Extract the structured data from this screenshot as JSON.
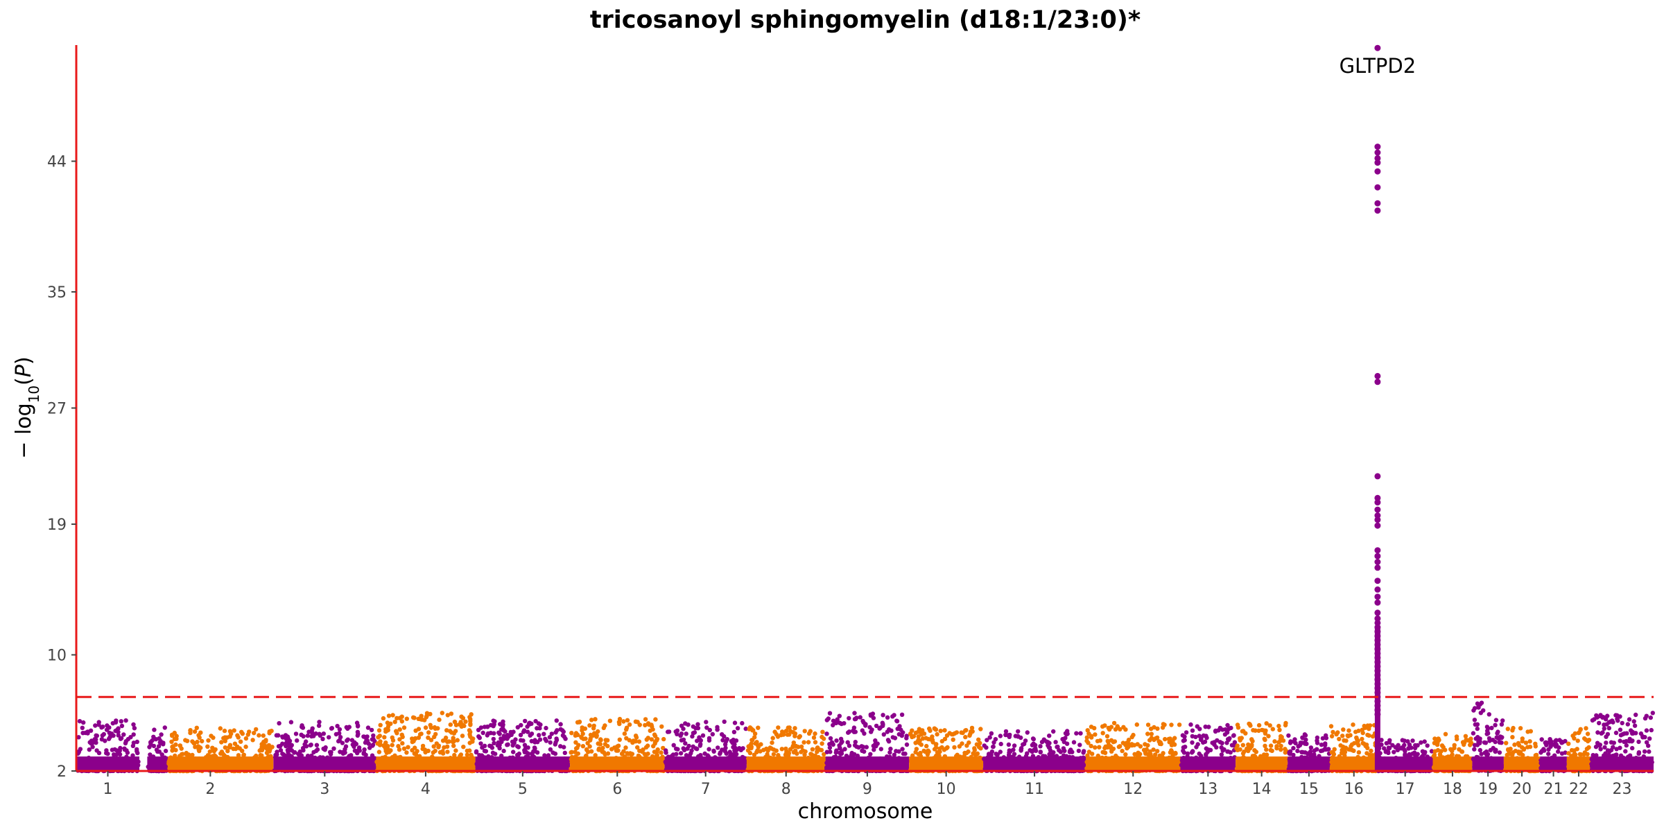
{
  "chart_data": {
    "type": "scatter",
    "title": "tricosanoyl sphingomyelin (d18:1/23:0)*",
    "xlabel": "chromosome",
    "ylabel": "−log10(P)",
    "ylim": [
      2,
      52
    ],
    "yticks": [
      2,
      10,
      19,
      27,
      35,
      44
    ],
    "significance_threshold": 7.1,
    "colors": {
      "odd": "#8B008B",
      "even": "#F07800",
      "axis": "#E8191A",
      "threshold": "#E8191A"
    },
    "chromosomes": [
      {
        "label": "1",
        "start": 0,
        "end": 4.0,
        "color": "odd",
        "max": 5.5
      },
      {
        "label": "2",
        "start": 4.5,
        "end": 12.5,
        "color": "odd-even",
        "max": 5.0
      },
      {
        "label": "3",
        "start": 12.5,
        "end": 19.0,
        "color": "odd",
        "max": 5.4
      },
      {
        "label": "4",
        "start": 19.0,
        "end": 25.3,
        "color": "even",
        "max": 6.0
      },
      {
        "label": "5",
        "start": 25.3,
        "end": 31.3,
        "color": "odd",
        "max": 5.5
      },
      {
        "label": "6",
        "start": 31.3,
        "end": 37.3,
        "color": "even",
        "max": 5.6
      },
      {
        "label": "7",
        "start": 37.3,
        "end": 42.5,
        "color": "odd",
        "max": 5.4
      },
      {
        "label": "8",
        "start": 42.5,
        "end": 47.5,
        "color": "even",
        "max": 5.0
      },
      {
        "label": "9",
        "start": 47.5,
        "end": 52.8,
        "color": "odd",
        "max": 6.0
      },
      {
        "label": "10",
        "start": 52.8,
        "end": 57.5,
        "color": "even",
        "max": 5.0
      },
      {
        "label": "11",
        "start": 57.5,
        "end": 64.0,
        "color": "odd",
        "max": 4.8
      },
      {
        "label": "12",
        "start": 64.0,
        "end": 70.0,
        "color": "even",
        "max": 5.3
      },
      {
        "label": "13",
        "start": 70.0,
        "end": 73.5,
        "color": "odd",
        "max": 5.2
      },
      {
        "label": "14",
        "start": 73.5,
        "end": 76.8,
        "color": "even",
        "max": 5.3
      },
      {
        "label": "15",
        "start": 76.8,
        "end": 79.5,
        "color": "odd",
        "max": 4.6
      },
      {
        "label": "16",
        "start": 79.5,
        "end": 82.5,
        "color": "even",
        "max": 5.2
      },
      {
        "label": "17",
        "start": 82.5,
        "end": 86.0,
        "color": "odd",
        "max": 4.2
      },
      {
        "label": "18",
        "start": 86.0,
        "end": 88.5,
        "color": "even",
        "max": 4.8
      },
      {
        "label": "19",
        "start": 88.5,
        "end": 90.5,
        "color": "odd",
        "max": 6.9
      },
      {
        "label": "20",
        "start": 90.5,
        "end": 92.8,
        "color": "even",
        "max": 5.0
      },
      {
        "label": "21",
        "start": 92.8,
        "end": 94.5,
        "color": "odd",
        "max": 4.4
      },
      {
        "label": "22",
        "start": 94.5,
        "end": 96.0,
        "color": "even",
        "max": 5.0
      },
      {
        "label": "23",
        "start": 96.0,
        "end": 100.0,
        "color": "odd",
        "max": 6.1
      }
    ],
    "peak": {
      "chromosome": "16/17 boundary",
      "label": "GLTPD2",
      "top_value": 51.8,
      "values": [
        51.8,
        45.0,
        44.6,
        44.2,
        43.9,
        43.3,
        42.2,
        41.1,
        40.6,
        29.2,
        28.8,
        22.3,
        20.8,
        20.5,
        20.0,
        19.6,
        19.3,
        18.9,
        17.2,
        16.8,
        16.4,
        16.0,
        15.1,
        14.5,
        14.0,
        13.6,
        12.9,
        12.5,
        12.2,
        11.9,
        11.6,
        11.3,
        11.0,
        10.7,
        10.4,
        10.1,
        9.8,
        9.5,
        9.2,
        8.9,
        8.6,
        8.3,
        8.0,
        7.7,
        7.4,
        7.1,
        6.8,
        6.5,
        6.2,
        5.9
      ]
    }
  }
}
